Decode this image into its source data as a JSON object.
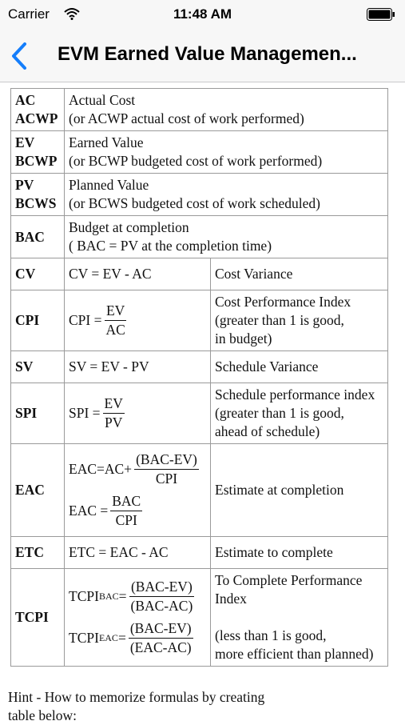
{
  "status_bar": {
    "carrier": "Carrier",
    "time": "11:48 AM"
  },
  "nav": {
    "title": "EVM Earned Value Managemen..."
  },
  "table": {
    "rows": [
      {
        "abbr": [
          "AC",
          "ACWP"
        ],
        "desc": [
          "Actual Cost",
          "(or ACWP actual cost of work performed)"
        ]
      },
      {
        "abbr": [
          "EV",
          "BCWP"
        ],
        "desc": [
          "Earned Value",
          "(or BCWP budgeted cost of work performed)"
        ]
      },
      {
        "abbr": [
          "PV",
          "BCWS"
        ],
        "desc": [
          "Planned Value",
          "(or BCWS budgeted cost of work scheduled)"
        ]
      },
      {
        "abbr": [
          "BAC"
        ],
        "desc": [
          "Budget at completion",
          "( BAC = PV at the completion time)"
        ]
      },
      {
        "abbr": [
          "CV"
        ],
        "formulas": [
          {
            "text": "CV = EV - AC"
          }
        ],
        "meaning": [
          "Cost Variance"
        ]
      },
      {
        "abbr": [
          "CPI"
        ],
        "formulas": [
          {
            "lhs": "CPI =",
            "num": "EV",
            "den": "AC"
          }
        ],
        "meaning": [
          "Cost Performance Index",
          "(greater than 1 is good,",
          "in budget)"
        ]
      },
      {
        "abbr": [
          "SV"
        ],
        "formulas": [
          {
            "text": "SV = EV - PV"
          }
        ],
        "meaning": [
          "Schedule Variance"
        ]
      },
      {
        "abbr": [
          "SPI"
        ],
        "formulas": [
          {
            "lhs": "SPI =",
            "num": "EV",
            "den": "PV"
          }
        ],
        "meaning": [
          "Schedule performance index",
          "(greater than 1 is good,",
          "ahead of schedule)"
        ]
      },
      {
        "abbr": [
          "EAC"
        ],
        "formulas": [
          {
            "lhs": "EAC=AC+",
            "num": "(BAC-EV)",
            "den": "CPI"
          },
          {
            "lhs": "EAC =",
            "num": "BAC",
            "den": "CPI"
          }
        ],
        "meaning": [
          "Estimate at completion"
        ]
      },
      {
        "abbr": [
          "ETC"
        ],
        "formulas": [
          {
            "text": "ETC = EAC - AC"
          }
        ],
        "meaning": [
          "Estimate to complete"
        ]
      },
      {
        "abbr": [
          "TCPI"
        ],
        "formulas": [
          {
            "lhs": "TCPI",
            "sub": "BAC",
            "eq": "=",
            "num": "(BAC-EV)",
            "den": "(BAC-AC)"
          },
          {
            "lhs": "TCPI",
            "sub": "EAC",
            "eq": "=",
            "num": "(BAC-EV)",
            "den": "(EAC-AC)"
          }
        ],
        "meaning": [
          "To Complete Performance",
          "Index"
        ],
        "note": [
          "(less than 1 is good,",
          "more efficient than planned)"
        ]
      }
    ]
  },
  "hint": [
    "Hint - How to memorize formulas by creating",
    "table below:"
  ]
}
